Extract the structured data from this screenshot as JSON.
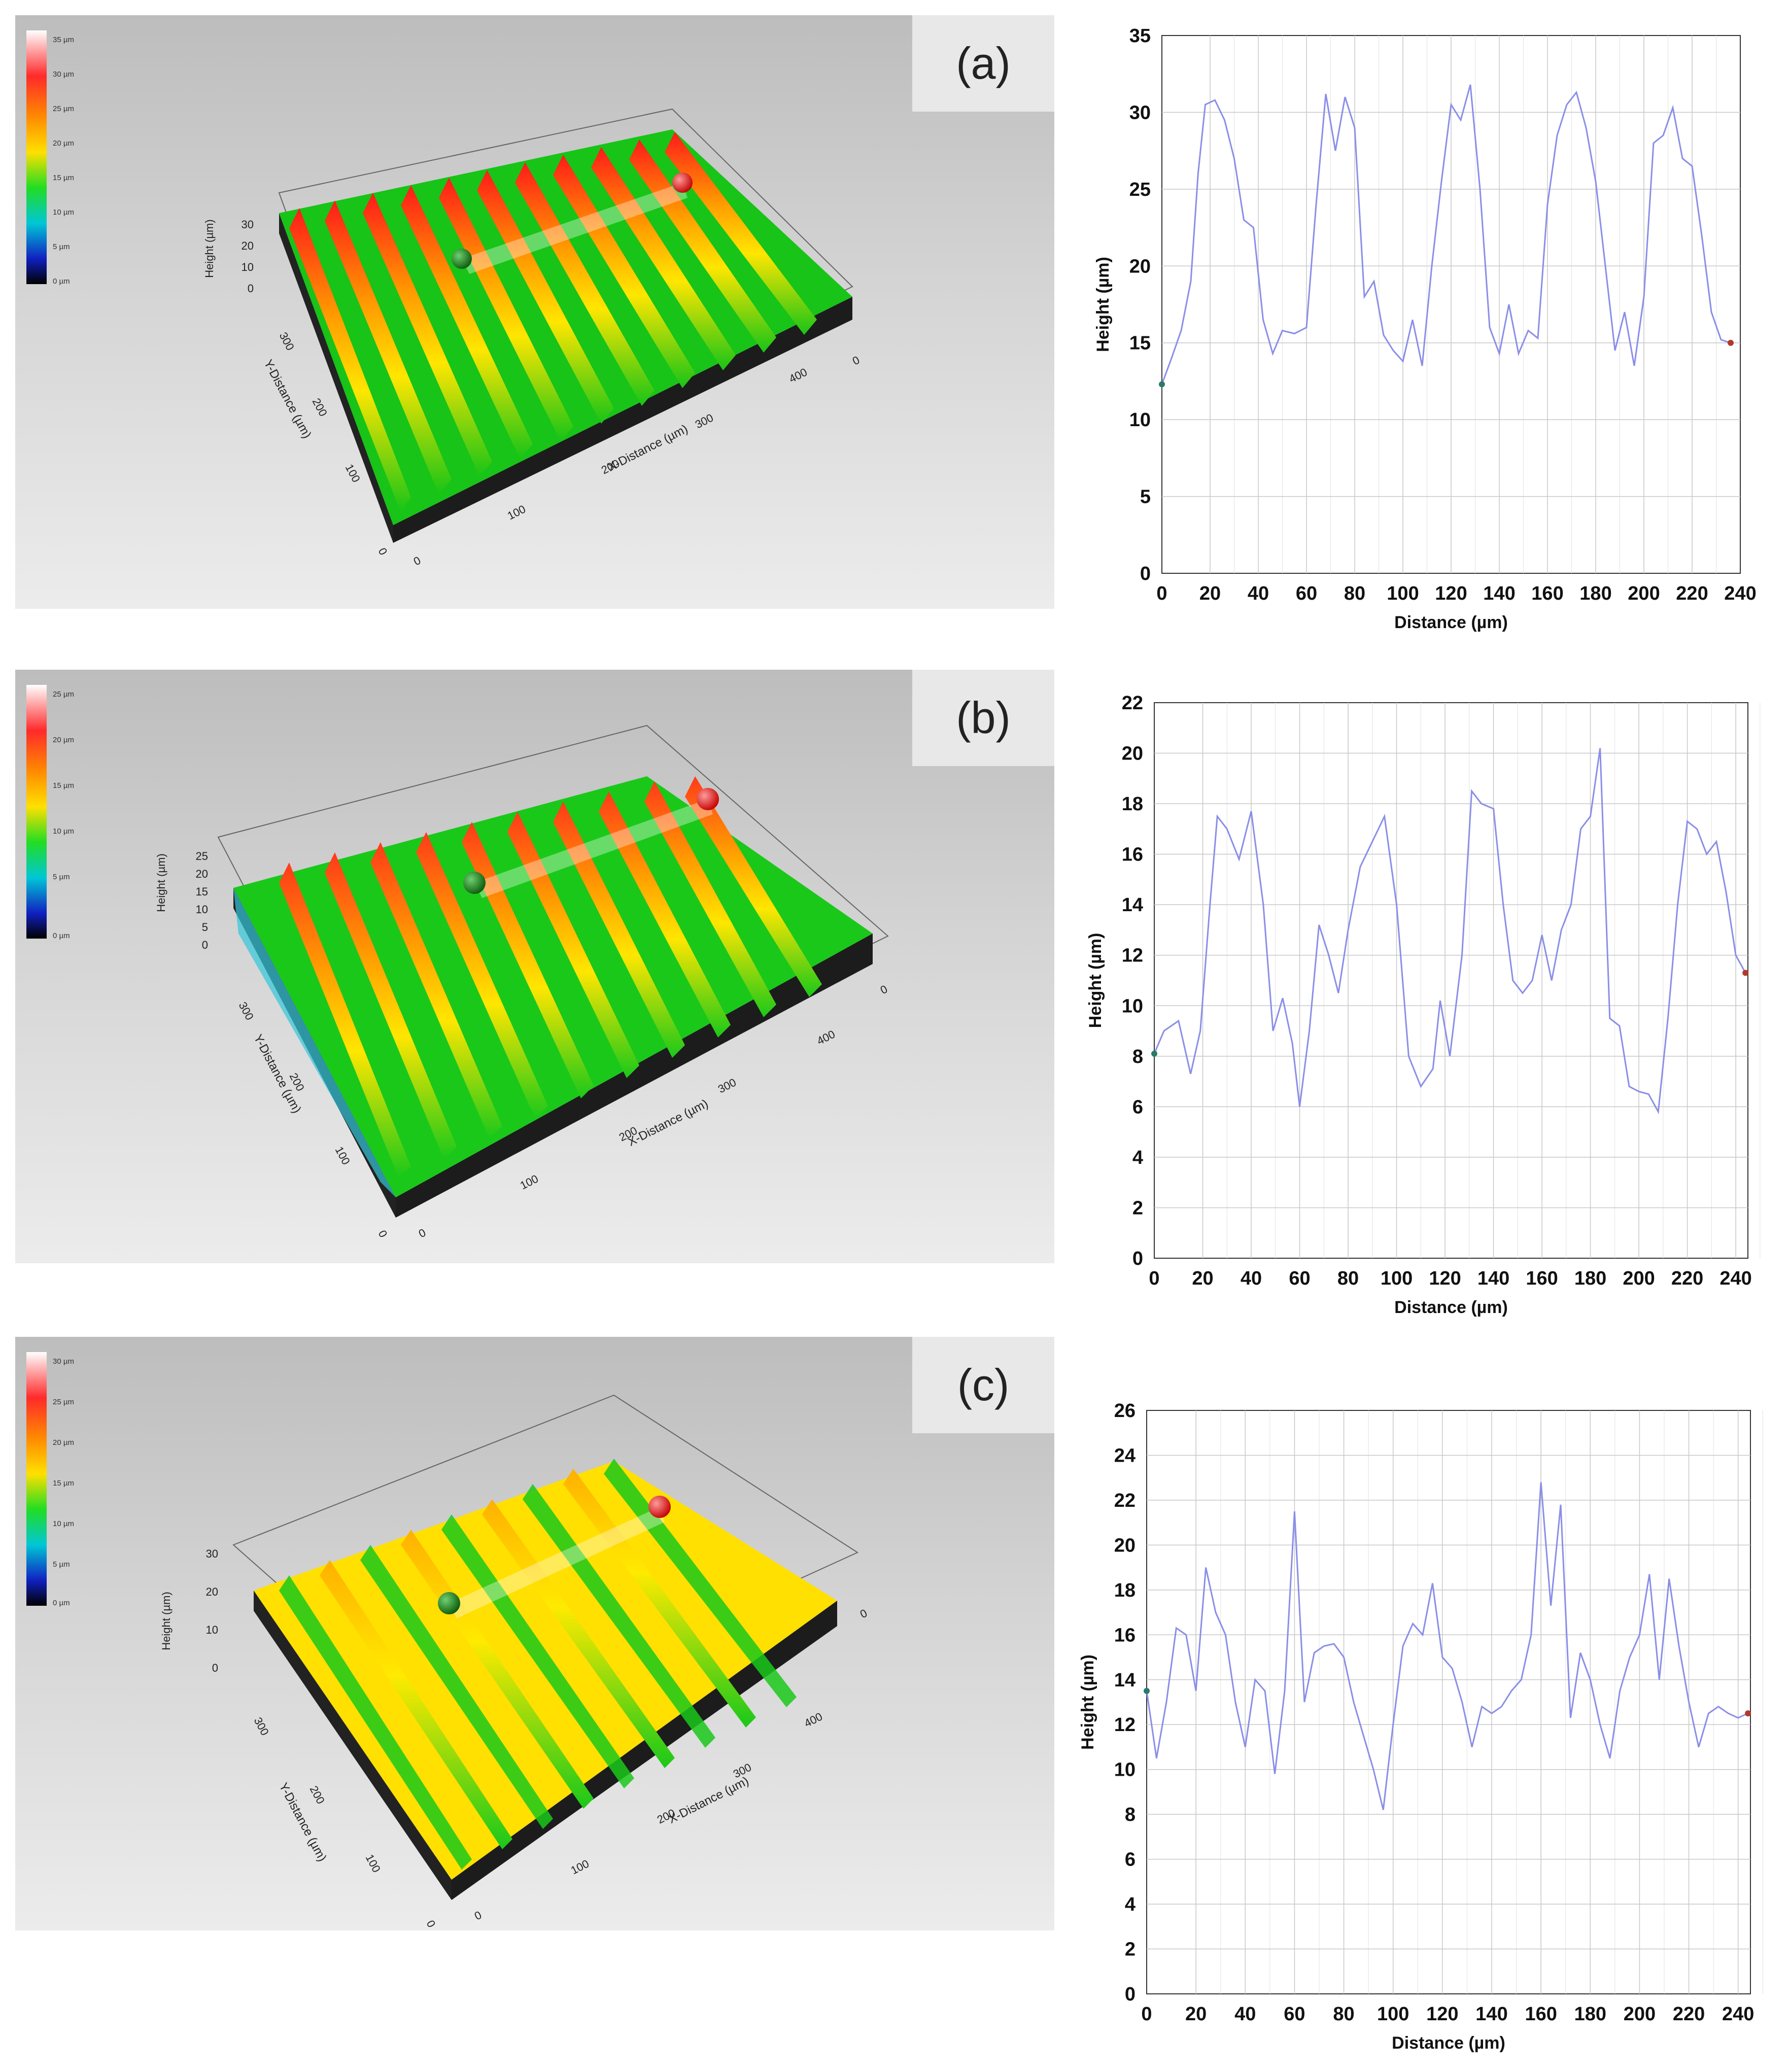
{
  "panels": [
    {
      "label": "(a)",
      "legend": [
        "35 µm",
        "30 µm",
        "25 µm",
        "20 µm",
        "15 µm",
        "10 µm",
        "5 µm",
        "0 µm"
      ],
      "height_axis": "Height (µm)",
      "height_ticks": [
        "30",
        "20",
        "10",
        "0"
      ],
      "y_axis": "Y-Distance (µm)",
      "y_ticks": [
        "300",
        "200",
        "100",
        "0"
      ],
      "x_axis": "X-Distance (µm)",
      "x_ticks": [
        "0",
        "100",
        "200",
        "300",
        "400"
      ],
      "far_tick": "0"
    },
    {
      "label": "(b)",
      "legend": [
        "25 µm",
        "20 µm",
        "15 µm",
        "10 µm",
        "5 µm",
        "0 µm"
      ],
      "height_axis": "Height (µm)",
      "height_ticks": [
        "25",
        "20",
        "15",
        "10",
        "5",
        "0"
      ],
      "y_axis": "Y-Distance (µm)",
      "y_ticks": [
        "300",
        "200",
        "100",
        "0"
      ],
      "x_axis": "X-Distance (µm)",
      "x_ticks": [
        "0",
        "100",
        "200",
        "300",
        "400"
      ],
      "far_tick": "0"
    },
    {
      "label": "(c)",
      "legend": [
        "30 µm",
        "25 µm",
        "20 µm",
        "15 µm",
        "10 µm",
        "5 µm",
        "0 µm"
      ],
      "height_axis": "Height (µm)",
      "height_ticks": [
        "30",
        "20",
        "10",
        "0"
      ],
      "y_axis": "Y-Distance (µm)",
      "y_ticks": [
        "300",
        "200",
        "100",
        "0"
      ],
      "x_axis": "X-Distance (µm)",
      "x_ticks": [
        "0",
        "100",
        "200",
        "300",
        "400"
      ],
      "far_tick": "0"
    }
  ],
  "chart_data": [
    {
      "type": "line",
      "xlabel": "Distance (µm)",
      "ylabel": "Height (µm)",
      "xlim": [
        0,
        240
      ],
      "ylim": [
        0,
        35
      ],
      "x_ticks": [
        0,
        20,
        40,
        60,
        80,
        100,
        120,
        140,
        160,
        180,
        200,
        220,
        240
      ],
      "y_ticks": [
        0,
        5,
        10,
        15,
        20,
        25,
        30,
        35
      ],
      "line_color": "#8a8ee8",
      "x": [
        0,
        4,
        8,
        12,
        15,
        18,
        22,
        26,
        30,
        34,
        38,
        42,
        46,
        50,
        55,
        60,
        64,
        68,
        72,
        76,
        80,
        84,
        88,
        92,
        96,
        100,
        104,
        108,
        112,
        116,
        120,
        124,
        128,
        132,
        136,
        140,
        144,
        148,
        152,
        156,
        160,
        164,
        168,
        172,
        176,
        180,
        184,
        188,
        192,
        196,
        200,
        204,
        208,
        212,
        216,
        220,
        224,
        228,
        232,
        236
      ],
      "y": [
        12.3,
        14,
        15.8,
        19,
        26,
        30.5,
        30.8,
        29.5,
        27,
        23,
        22.5,
        16.5,
        14.3,
        15.8,
        15.6,
        16,
        24,
        31.2,
        27.5,
        31,
        29,
        18,
        19,
        15.5,
        14.5,
        13.8,
        16.5,
        13.5,
        20,
        25.5,
        30.5,
        29.5,
        31.8,
        25,
        16,
        14.3,
        17.5,
        14.3,
        15.8,
        15.3,
        24,
        28.5,
        30.5,
        31.3,
        29,
        25.5,
        20,
        14.5,
        17,
        13.5,
        18,
        28,
        28.5,
        30.3,
        27,
        26.5,
        22,
        17,
        15.2,
        15
      ]
    },
    {
      "type": "line",
      "xlabel": "Distance (µm)",
      "ylabel": "Height (µm)",
      "xlim": [
        0,
        245
      ],
      "ylim": [
        0,
        22
      ],
      "x_ticks": [
        0,
        20,
        40,
        60,
        80,
        100,
        120,
        140,
        160,
        180,
        200,
        220,
        240
      ],
      "y_ticks": [
        0,
        2,
        4,
        6,
        8,
        10,
        12,
        14,
        16,
        18,
        20,
        22
      ],
      "line_color": "#8a8ee8",
      "x": [
        0,
        4,
        10,
        15,
        19,
        23,
        26,
        30,
        35,
        40,
        45,
        49,
        53,
        57,
        60,
        64,
        68,
        72,
        76,
        80,
        85,
        90,
        95,
        100,
        105,
        110,
        115,
        118,
        122,
        127,
        131,
        135,
        140,
        144,
        148,
        152,
        156,
        160,
        164,
        168,
        172,
        176,
        180,
        184,
        188,
        192,
        196,
        200,
        204,
        208,
        212,
        216,
        220,
        224,
        228,
        232,
        236,
        240,
        244
      ],
      "y": [
        8.1,
        9,
        9.4,
        7.3,
        9,
        14,
        17.5,
        17,
        15.8,
        17.7,
        14,
        9,
        10.3,
        8.5,
        6,
        9,
        13.2,
        12,
        10.5,
        13,
        15.5,
        16.5,
        17.5,
        14,
        8,
        6.8,
        7.5,
        10.2,
        8,
        12,
        18.5,
        18,
        17.8,
        14,
        11,
        10.5,
        11,
        12.8,
        11,
        13,
        14,
        17,
        17.5,
        20.2,
        9.5,
        9.2,
        6.8,
        6.6,
        6.5,
        5.8,
        9.5,
        14,
        17.3,
        17,
        16,
        16.5,
        14.5,
        12,
        11.3
      ]
    },
    {
      "type": "line",
      "xlabel": "Distance (µm)",
      "ylabel": "Height (µm)",
      "xlim": [
        0,
        245
      ],
      "ylim": [
        0,
        26
      ],
      "x_ticks": [
        0,
        20,
        40,
        60,
        80,
        100,
        120,
        140,
        160,
        180,
        200,
        220,
        240
      ],
      "y_ticks": [
        0,
        2,
        4,
        6,
        8,
        10,
        12,
        14,
        16,
        18,
        20,
        22,
        24,
        26
      ],
      "line_color": "#8a8ee8",
      "x": [
        0,
        4,
        8,
        12,
        16,
        20,
        24,
        28,
        32,
        36,
        40,
        44,
        48,
        52,
        56,
        60,
        64,
        68,
        72,
        76,
        80,
        84,
        88,
        92,
        96,
        100,
        104,
        108,
        112,
        116,
        120,
        124,
        128,
        132,
        136,
        140,
        144,
        148,
        152,
        156,
        160,
        164,
        168,
        172,
        176,
        180,
        184,
        188,
        192,
        196,
        200,
        204,
        208,
        212,
        216,
        220,
        224,
        228,
        232,
        236,
        240,
        244
      ],
      "y": [
        13.5,
        10.5,
        13,
        16.3,
        16,
        13.5,
        19,
        17,
        16,
        13,
        11,
        14,
        13.5,
        9.8,
        13.5,
        21.5,
        13,
        15.2,
        15.5,
        15.6,
        15,
        13,
        11.5,
        10,
        8.2,
        12,
        15.5,
        16.5,
        16,
        18.3,
        15,
        14.5,
        13,
        11,
        12.8,
        12.5,
        12.8,
        13.5,
        14,
        16,
        22.8,
        17.3,
        21.8,
        12.3,
        15.2,
        14,
        12,
        10.5,
        13.5,
        15,
        16,
        18.7,
        14,
        18.5,
        15.5,
        13,
        11,
        12.5,
        12.8,
        12.5,
        12.3,
        12.5
      ]
    }
  ]
}
